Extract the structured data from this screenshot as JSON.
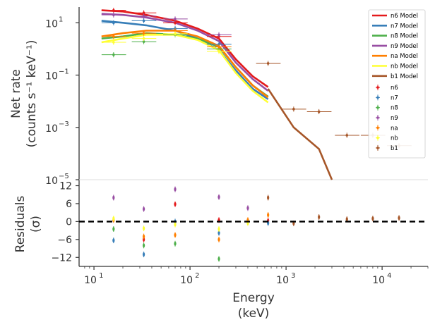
{
  "chart_data": {
    "type": "line",
    "xlabel_lines": [
      "Energy",
      "(keV)"
    ],
    "ylabel_lines": [
      "Net rate",
      "(counts s⁻¹ keV⁻¹)"
    ],
    "residual_ylabel_lines": [
      "Residuals",
      "(σ)"
    ],
    "xscale": "log",
    "yscale": "log",
    "xlim": [
      7,
      30000
    ],
    "ylim": [
      1e-05,
      40
    ],
    "residual_ylim": [
      -15,
      14
    ],
    "x_ticks": [
      "10",
      "10",
      "10",
      "10"
    ],
    "x_tick_exps": [
      "1",
      "2",
      "3",
      "4"
    ],
    "x_tick_values": [
      10,
      100,
      1000,
      10000
    ],
    "y_ticks": [
      "10",
      "10",
      "10",
      "10"
    ],
    "y_tick_exps": [
      "1",
      "−1",
      "−3",
      "−5"
    ],
    "y_tick_values": [
      10,
      0.1,
      0.001,
      1e-05
    ],
    "residual_ticks": [
      "12",
      "6",
      "0",
      "−6",
      "−12"
    ],
    "residual_tick_values": [
      12,
      6,
      0,
      -6,
      -12
    ],
    "legend_position": "top-right",
    "models": [
      {
        "name": "n6 Model",
        "color": "#e41a1c",
        "x": [
          12,
          20,
          35,
          70,
          120,
          200,
          300,
          450,
          650
        ],
        "y": [
          30,
          27,
          20,
          12,
          6,
          2.5,
          0.4,
          0.09,
          0.035
        ]
      },
      {
        "name": "n7 Model",
        "color": "#377eb8",
        "x": [
          12,
          20,
          35,
          70,
          120,
          200,
          300,
          450,
          650
        ],
        "y": [
          12,
          10,
          8,
          5,
          2.5,
          0.9,
          0.15,
          0.03,
          0.012
        ]
      },
      {
        "name": "n8 Model",
        "color": "#4daf4a",
        "x": [
          12,
          20,
          35,
          70,
          120,
          200,
          300,
          450,
          650
        ],
        "y": [
          2.5,
          3,
          4,
          3.5,
          2.5,
          1.2,
          0.2,
          0.04,
          0.015
        ]
      },
      {
        "name": "n9 Model",
        "color": "#984ea3",
        "x": [
          12,
          20,
          35,
          70,
          120,
          200,
          300,
          450,
          650
        ],
        "y": [
          22,
          20,
          16,
          10,
          5,
          2,
          0.3,
          0.07,
          0.025
        ]
      },
      {
        "name": "na Model",
        "color": "#ff7f00",
        "x": [
          12,
          20,
          35,
          70,
          120,
          200,
          300,
          450,
          650
        ],
        "y": [
          3,
          4,
          5,
          5,
          3,
          1.3,
          0.2,
          0.04,
          0.014
        ]
      },
      {
        "name": "nb Model",
        "color": "#ffff33",
        "x": [
          12,
          20,
          35,
          70,
          120,
          200,
          300,
          450,
          650
        ],
        "y": [
          1.8,
          2.5,
          3.5,
          3.5,
          2.2,
          0.9,
          0.12,
          0.025,
          0.009
        ]
      },
      {
        "name": "b1 Model",
        "color": "#a65628",
        "x": [
          650,
          1200,
          2200,
          3000
        ],
        "y": [
          0.03,
          0.001,
          0.00015,
          6e-06
        ]
      }
    ],
    "data_series": [
      {
        "name": "n6",
        "color": "#e41a1c",
        "points": [
          [
            16,
            30
          ],
          [
            33,
            24
          ],
          [
            70,
            10
          ],
          [
            200,
            3
          ]
        ],
        "residuals": [
          [
            33,
            -6
          ],
          [
            70,
            5.8
          ],
          [
            200,
            0.5
          ],
          [
            650,
            0.3
          ]
        ]
      },
      {
        "name": "n7",
        "color": "#377eb8",
        "points": [
          [
            16,
            10
          ],
          [
            33,
            12
          ],
          [
            70,
            6
          ],
          [
            200,
            1.5
          ]
        ],
        "residuals": [
          [
            16,
            -6.3
          ],
          [
            33,
            -11
          ],
          [
            70,
            0
          ],
          [
            200,
            -3.8
          ],
          [
            650,
            -0.5
          ]
        ]
      },
      {
        "name": "n8",
        "color": "#4daf4a",
        "points": [
          [
            16,
            0.6
          ],
          [
            33,
            1.9
          ],
          [
            70,
            3.5
          ],
          [
            200,
            1
          ]
        ],
        "residuals": [
          [
            16,
            -2.5
          ],
          [
            33,
            -8
          ],
          [
            70,
            -7.4
          ],
          [
            200,
            -12.5
          ]
        ]
      },
      {
        "name": "n9",
        "color": "#984ea3",
        "points": [
          [
            16,
            20
          ],
          [
            33,
            18
          ],
          [
            70,
            14
          ],
          [
            200,
            3.5
          ]
        ],
        "residuals": [
          [
            16,
            8
          ],
          [
            33,
            4.2
          ],
          [
            70,
            10.8
          ],
          [
            200,
            8.2
          ],
          [
            400,
            4.5
          ]
        ]
      },
      {
        "name": "na",
        "color": "#ff7f00",
        "points": [
          [
            16,
            3
          ],
          [
            33,
            4
          ],
          [
            70,
            5
          ],
          [
            200,
            1.2
          ]
        ],
        "residuals": [
          [
            16,
            0.5
          ],
          [
            33,
            -5
          ],
          [
            70,
            -4.5
          ],
          [
            200,
            -6
          ],
          [
            400,
            0.5
          ],
          [
            650,
            2.2
          ]
        ]
      },
      {
        "name": "nb",
        "color": "#ffff33",
        "points": [
          [
            16,
            1.8
          ],
          [
            33,
            2.5
          ],
          [
            70,
            3.8
          ],
          [
            200,
            0.8
          ]
        ],
        "residuals": [
          [
            16,
            1
          ],
          [
            33,
            -2.3
          ],
          [
            70,
            -1
          ],
          [
            200,
            -2.5
          ],
          [
            400,
            -0.5
          ]
        ]
      },
      {
        "name": "b1",
        "color": "#a65628",
        "points": [
          [
            650,
            0.28
          ],
          [
            1200,
            0.005
          ],
          [
            2200,
            0.004
          ],
          [
            4300,
            0.0005
          ],
          [
            8000,
            0.0005
          ],
          [
            15000,
            0.0002
          ]
        ],
        "residuals": [
          [
            650,
            8
          ],
          [
            1200,
            -0.6
          ],
          [
            2200,
            1.5
          ],
          [
            4300,
            0.8
          ],
          [
            8000,
            1
          ],
          [
            15000,
            1.2
          ]
        ]
      }
    ]
  }
}
